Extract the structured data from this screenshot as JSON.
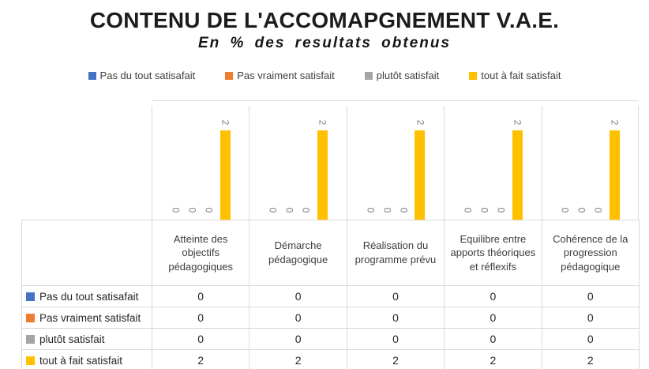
{
  "chart": {
    "title": "CONTENU DE L'ACCOMAPGNEMENT V.A.E.",
    "subtitle": "En % des resultats obtenus"
  },
  "colors": {
    "grid": "#D9D9D9",
    "data_label": "#7F7F7F",
    "legend_text": "#404040",
    "blue": "#4472C4",
    "orange": "#ED7D31",
    "gray": "#A5A5A5",
    "yellow": "#FFC000"
  },
  "chart_data": {
    "type": "bar",
    "title": "CONTENU DE L'ACCOMAPGNEMENT V.A.E.",
    "subtitle": "En % des resultats obtenus",
    "categories": [
      "Atteinte des objectifs pédagogiques",
      "Démarche pédagogique",
      "Réalisation du programme prévu",
      "Equilibre entre apports théoriques et réflexifs",
      "Cohérence de la progression pédagogique"
    ],
    "series": [
      {
        "name": "Pas du tout satisafait",
        "color": "#4472C4",
        "values": [
          0,
          0,
          0,
          0,
          0
        ]
      },
      {
        "name": "Pas vraiment satisfait",
        "color": "#ED7D31",
        "values": [
          0,
          0,
          0,
          0,
          0
        ]
      },
      {
        "name": "plutôt satisfait",
        "color": "#A5A5A5",
        "values": [
          0,
          0,
          0,
          0,
          0
        ]
      },
      {
        "name": "tout à fait satisfait",
        "color": "#FFC000",
        "values": [
          2,
          2,
          2,
          2,
          2
        ]
      }
    ],
    "ylim": [
      0,
      2.5
    ],
    "y_axis_labels_shown": false,
    "gridlines": "top horizontal line and vertical category separators",
    "data_labels": "values shown rotated 90 degrees above bars",
    "legend_position": "top",
    "data_table_shown": true
  }
}
